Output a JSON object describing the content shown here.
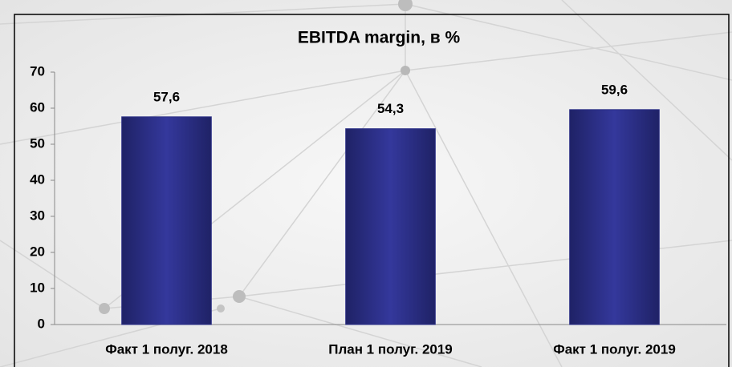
{
  "chart_data": {
    "type": "bar",
    "title": "EBITDA margin, в %",
    "categories": [
      "Факт 1 полуг. 2018",
      "План 1 полуг. 2019",
      "Факт 1 полуг. 2019"
    ],
    "values": [
      57.6,
      54.3,
      59.6
    ],
    "value_labels": [
      "57,6",
      "54,3",
      "59,6"
    ],
    "color": "#2b2f86",
    "ylim": [
      0,
      70
    ],
    "yticks": [
      0,
      10,
      20,
      30,
      40,
      50,
      60,
      70
    ],
    "grid": false
  }
}
